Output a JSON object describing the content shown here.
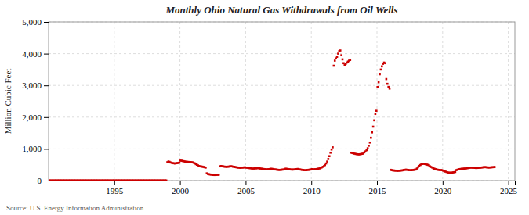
{
  "chart_data": {
    "type": "scatter",
    "title": "Monthly Ohio Natural Gas Withdrawals from Oil Wells",
    "ylabel": "Million Cubic Feet",
    "annotations": [
      "Source: U.S. Energy Information Administration"
    ],
    "color": "#CC0000",
    "marker": "square",
    "grid": true,
    "xlim": [
      1990,
      2025.5
    ],
    "ylim": [
      0,
      5000
    ],
    "xticks": [
      1995,
      2000,
      2005,
      2010,
      2015,
      2020,
      2025
    ],
    "yticks": [
      0,
      {
        "value": 1000,
        "label": "1,000"
      },
      {
        "value": 2000,
        "label": "2,000"
      },
      {
        "value": 3000,
        "label": "3,000"
      },
      {
        "value": 4000,
        "label": "4,000"
      },
      {
        "value": 5000,
        "label": "5,000"
      }
    ],
    "x": [
      1990.0416666666667,
      1990.125,
      1990.2083333333333,
      1990.2916666666667,
      1990.375,
      1990.4583333333333,
      1990.5416666666667,
      1990.625,
      1990.7083333333333,
      1990.7916666666667,
      1990.875,
      1990.9583333333333,
      1991.0416666666667,
      1991.125,
      1991.2083333333333,
      1991.2916666666667,
      1991.375,
      1991.4583333333333,
      1991.5416666666667,
      1991.625,
      1991.7083333333333,
      1991.7916666666667,
      1991.875,
      1991.9583333333333,
      1992.0416666666667,
      1992.125,
      1992.2083333333333,
      1992.2916666666667,
      1992.375,
      1992.4583333333333,
      1992.5416666666667,
      1992.625,
      1992.7083333333333,
      1992.7916666666667,
      1992.875,
      1992.9583333333333,
      1993.0416666666667,
      1993.125,
      1993.2083333333333,
      1993.2916666666667,
      1993.375,
      1993.4583333333333,
      1993.5416666666667,
      1993.625,
      1993.7083333333333,
      1993.7916666666667,
      1993.875,
      1993.9583333333333,
      1994.0416666666667,
      1994.125,
      1994.2083333333333,
      1994.2916666666667,
      1994.375,
      1994.4583333333333,
      1994.5416666666667,
      1994.625,
      1994.7083333333333,
      1994.7916666666667,
      1994.875,
      1994.9583333333333,
      1995.0416666666667,
      1995.125,
      1995.2083333333333,
      1995.2916666666667,
      1995.375,
      1995.4583333333333,
      1995.5416666666667,
      1995.625,
      1995.7083333333333,
      1995.7916666666667,
      1995.875,
      1995.9583333333333,
      1996.0416666666667,
      1996.125,
      1996.2083333333333,
      1996.2916666666667,
      1996.375,
      1996.4583333333333,
      1996.5416666666667,
      1996.625,
      1996.7083333333333,
      1996.7916666666667,
      1996.875,
      1996.9583333333333,
      1997.0416666666667,
      1997.125,
      1997.2083333333333,
      1997.2916666666667,
      1997.375,
      1997.4583333333333,
      1997.5416666666667,
      1997.625,
      1997.7083333333333,
      1997.7916666666667,
      1997.875,
      1997.9583333333333,
      1998.0416666666667,
      1998.125,
      1998.2083333333333,
      1998.2916666666667,
      1998.375,
      1998.4583333333333,
      1998.5416666666667,
      1998.625,
      1998.7083333333333,
      1998.7916666666667,
      1998.875,
      1998.9583333333333,
      1999.0416666666667,
      1999.125,
      1999.2083333333333,
      1999.2916666666667,
      1999.375,
      1999.4583333333333,
      1999.5416666666667,
      1999.625,
      1999.7083333333333,
      1999.7916666666667,
      1999.875,
      1999.9583333333333,
      2000.0416666666667,
      2000.125,
      2000.2083333333333,
      2000.2916666666667,
      2000.375,
      2000.4583333333333,
      2000.5416666666667,
      2000.625,
      2000.7083333333333,
      2000.7916666666667,
      2000.875,
      2000.9583333333333,
      2001.0416666666667,
      2001.125,
      2001.2083333333333,
      2001.2916666666667,
      2001.375,
      2001.4583333333333,
      2001.5416666666667,
      2001.625,
      2001.7083333333333,
      2001.7916666666667,
      2001.875,
      2001.9583333333333,
      2002.0416666666667,
      2002.125,
      2002.2083333333333,
      2002.2916666666667,
      2002.375,
      2002.4583333333333,
      2002.5416666666667,
      2002.625,
      2002.7083333333333,
      2002.7916666666667,
      2002.875,
      2002.9583333333333,
      2003.0416666666667,
      2003.125,
      2003.2083333333333,
      2003.2916666666667,
      2003.375,
      2003.4583333333333,
      2003.5416666666667,
      2003.625,
      2003.7083333333333,
      2003.7916666666667,
      2003.875,
      2003.9583333333333,
      2004.0416666666667,
      2004.125,
      2004.2083333333333,
      2004.2916666666667,
      2004.375,
      2004.4583333333333,
      2004.5416666666667,
      2004.625,
      2004.7083333333333,
      2004.7916666666667,
      2004.875,
      2004.9583333333333,
      2005.0416666666667,
      2005.125,
      2005.2083333333333,
      2005.2916666666667,
      2005.375,
      2005.4583333333333,
      2005.5416666666667,
      2005.625,
      2005.7083333333333,
      2005.7916666666667,
      2005.875,
      2005.9583333333333,
      2006.0416666666667,
      2006.125,
      2006.2083333333333,
      2006.2916666666667,
      2006.375,
      2006.4583333333333,
      2006.5416666666667,
      2006.625,
      2006.7083333333333,
      2006.7916666666667,
      2006.875,
      2006.9583333333333,
      2007.0416666666667,
      2007.125,
      2007.2083333333333,
      2007.2916666666667,
      2007.375,
      2007.4583333333333,
      2007.5416666666667,
      2007.625,
      2007.7083333333333,
      2007.7916666666667,
      2007.875,
      2007.9583333333333,
      2008.0416666666667,
      2008.125,
      2008.2083333333333,
      2008.2916666666667,
      2008.375,
      2008.4583333333333,
      2008.5416666666667,
      2008.625,
      2008.7083333333333,
      2008.7916666666667,
      2008.875,
      2008.9583333333333,
      2009.0416666666667,
      2009.125,
      2009.2083333333333,
      2009.2916666666667,
      2009.375,
      2009.4583333333333,
      2009.5416666666667,
      2009.625,
      2009.7083333333333,
      2009.7916666666667,
      2009.875,
      2009.9583333333333,
      2010.0416666666667,
      2010.125,
      2010.2083333333333,
      2010.2916666666667,
      2010.375,
      2010.4583333333333,
      2010.5416666666667,
      2010.625,
      2010.7083333333333,
      2010.7916666666667,
      2010.875,
      2010.9583333333333,
      2011.0416666666667,
      2011.125,
      2011.2083333333333,
      2011.2916666666667,
      2011.375,
      2011.4583333333333,
      2011.5416666666667,
      2011.625,
      2011.7083333333333,
      2011.7916666666667,
      2011.875,
      2011.9583333333333,
      2012.0416666666667,
      2012.125,
      2012.2083333333333,
      2012.2916666666667,
      2012.375,
      2012.4583333333333,
      2012.5416666666667,
      2012.625,
      2012.7083333333333,
      2012.7916666666667,
      2012.875,
      2012.9583333333333,
      2013.0416666666667,
      2013.125,
      2013.2083333333333,
      2013.2916666666667,
      2013.375,
      2013.4583333333333,
      2013.5416666666667,
      2013.625,
      2013.7083333333333,
      2013.7916666666667,
      2013.875,
      2013.9583333333333,
      2014.0416666666667,
      2014.125,
      2014.2083333333333,
      2014.2916666666667,
      2014.375,
      2014.4583333333333,
      2014.5416666666667,
      2014.625,
      2014.7083333333333,
      2014.7916666666667,
      2014.875,
      2014.9583333333333,
      2015.0416666666667,
      2015.125,
      2015.2083333333333,
      2015.2916666666667,
      2015.375,
      2015.4583333333333,
      2015.5416666666667,
      2015.625,
      2015.7083333333333,
      2015.7916666666667,
      2015.875,
      2015.9583333333333,
      2016.0416666666667,
      2016.125,
      2016.2083333333333,
      2016.2916666666667,
      2016.375,
      2016.4583333333333,
      2016.5416666666667,
      2016.625,
      2016.7083333333333,
      2016.7916666666667,
      2016.875,
      2016.9583333333333,
      2017.0416666666667,
      2017.125,
      2017.2083333333333,
      2017.2916666666667,
      2017.375,
      2017.4583333333333,
      2017.5416666666667,
      2017.625,
      2017.7083333333333,
      2017.7916666666667,
      2017.875,
      2017.9583333333333,
      2018.0416666666667,
      2018.125,
      2018.2083333333333,
      2018.2916666666667,
      2018.375,
      2018.4583333333333,
      2018.5416666666667,
      2018.625,
      2018.7083333333333,
      2018.7916666666667,
      2018.875,
      2018.9583333333333,
      2019.0416666666667,
      2019.125,
      2019.2083333333333,
      2019.2916666666667,
      2019.375,
      2019.4583333333333,
      2019.5416666666667,
      2019.625,
      2019.7083333333333,
      2019.7916666666667,
      2019.875,
      2019.9583333333333,
      2020.0416666666667,
      2020.125,
      2020.2083333333333,
      2020.2916666666667,
      2020.375,
      2020.4583333333333,
      2020.5416666666667,
      2020.625,
      2020.7083333333333,
      2020.7916666666667,
      2020.875,
      2020.9583333333333,
      2021.0416666666667,
      2021.125,
      2021.2083333333333,
      2021.2916666666667,
      2021.375,
      2021.4583333333333,
      2021.5416666666667,
      2021.625,
      2021.7083333333333,
      2021.7916666666667,
      2021.875,
      2021.9583333333333,
      2022.0416666666667,
      2022.125,
      2022.2083333333333,
      2022.2916666666667,
      2022.375,
      2022.4583333333333,
      2022.5416666666667,
      2022.625,
      2022.7083333333333,
      2022.7916666666667,
      2022.875,
      2022.9583333333333,
      2023.0416666666667,
      2023.125,
      2023.2083333333333,
      2023.2916666666667,
      2023.375,
      2023.4583333333333,
      2023.5416666666667,
      2023.625,
      2023.7083333333333,
      2023.7916666666667,
      2023.875,
      2023.9583333333333
    ],
    "values": [
      5,
      5,
      5,
      5,
      5,
      5,
      5,
      5,
      5,
      5,
      5,
      5,
      5,
      5,
      5,
      5,
      5,
      5,
      5,
      5,
      5,
      5,
      5,
      5,
      5,
      5,
      5,
      5,
      5,
      5,
      5,
      5,
      5,
      5,
      5,
      5,
      5,
      5,
      5,
      5,
      5,
      5,
      5,
      5,
      5,
      5,
      5,
      5,
      5,
      5,
      5,
      5,
      5,
      5,
      5,
      5,
      5,
      5,
      5,
      5,
      5,
      5,
      5,
      5,
      5,
      5,
      5,
      5,
      5,
      5,
      5,
      5,
      5,
      5,
      5,
      5,
      5,
      5,
      5,
      5,
      5,
      5,
      5,
      5,
      5,
      5,
      5,
      5,
      5,
      5,
      5,
      5,
      5,
      5,
      5,
      5,
      5,
      5,
      5,
      5,
      5,
      5,
      5,
      5,
      5,
      5,
      5,
      5,
      580,
      600,
      590,
      570,
      560,
      550,
      545,
      540,
      548,
      552,
      558,
      565,
      630,
      625,
      615,
      610,
      600,
      595,
      590,
      588,
      585,
      582,
      580,
      575,
      560,
      545,
      520,
      500,
      480,
      460,
      450,
      445,
      440,
      430,
      420,
      410,
      230,
      210,
      200,
      195,
      190,
      185,
      180,
      178,
      180,
      182,
      185,
      188,
      450,
      460,
      455,
      448,
      442,
      438,
      435,
      438,
      442,
      448,
      452,
      448,
      440,
      435,
      428,
      420,
      415,
      410,
      405,
      405,
      408,
      412,
      415,
      418,
      410,
      405,
      400,
      395,
      390,
      385,
      380,
      382,
      385,
      388,
      392,
      395,
      388,
      382,
      375,
      370,
      365,
      360,
      355,
      355,
      358,
      362,
      368,
      372,
      368,
      362,
      355,
      350,
      345,
      340,
      338,
      338,
      342,
      346,
      350,
      355,
      375,
      370,
      365,
      360,
      355,
      350,
      348,
      348,
      352,
      358,
      362,
      368,
      358,
      352,
      345,
      340,
      335,
      330,
      328,
      330,
      335,
      340,
      345,
      350,
      362,
      358,
      355,
      358,
      362,
      368,
      375,
      385,
      398,
      415,
      435,
      455,
      490,
      540,
      600,
      680,
      770,
      880,
      980,
      1050,
      3620,
      3780,
      3850,
      3900,
      4000,
      4080,
      4100,
      3950,
      3820,
      3700,
      3650,
      3680,
      3720,
      3750,
      3780,
      3800,
      880,
      870,
      860,
      850,
      840,
      835,
      830,
      828,
      832,
      838,
      845,
      852,
      890,
      920,
      960,
      1020,
      1100,
      1200,
      1350,
      1520,
      1700,
      1900,
      2100,
      2200,
      2950,
      3100,
      3350,
      3500,
      3600,
      3680,
      3720,
      3700,
      3200,
      3050,
      2950,
      2900,
      340,
      330,
      322,
      318,
      315,
      312,
      310,
      310,
      312,
      315,
      320,
      325,
      335,
      340,
      345,
      340,
      335,
      330,
      328,
      328,
      332,
      338,
      345,
      350,
      380,
      420,
      460,
      490,
      510,
      525,
      530,
      525,
      515,
      505,
      495,
      488,
      450,
      430,
      410,
      390,
      375,
      360,
      350,
      342,
      338,
      335,
      332,
      328,
      310,
      298,
      285,
      272,
      260,
      252,
      248,
      248,
      252,
      258,
      265,
      272,
      330,
      342,
      355,
      362,
      368,
      372,
      375,
      378,
      382,
      388,
      392,
      398,
      405,
      408,
      410,
      408,
      405,
      402,
      398,
      400,
      402,
      405,
      408,
      412,
      418,
      422,
      425,
      422,
      418,
      415,
      412,
      415,
      418,
      422,
      425,
      428
    ]
  }
}
